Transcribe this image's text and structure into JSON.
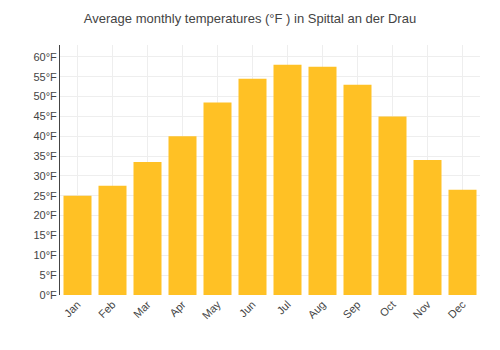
{
  "chart_data": {
    "type": "bar",
    "title": "Average monthly temperatures (°F ) in Spittal an der Drau",
    "categories": [
      "Jan",
      "Feb",
      "Mar",
      "Apr",
      "May",
      "Jun",
      "Jul",
      "Aug",
      "Sep",
      "Oct",
      "Nov",
      "Dec"
    ],
    "values": [
      25,
      27.5,
      33.5,
      40,
      48.5,
      54.5,
      58,
      57.5,
      53,
      45,
      34,
      26.5
    ],
    "color": "#FFC125",
    "ylim": [
      0,
      63
    ],
    "yticks": [
      {
        "value": 0,
        "label": "0°F"
      },
      {
        "value": 5,
        "label": "5°F"
      },
      {
        "value": 10,
        "label": "10°F"
      },
      {
        "value": 15,
        "label": "15°F"
      },
      {
        "value": 20,
        "label": "20°F"
      },
      {
        "value": 25,
        "label": "25°F"
      },
      {
        "value": 30,
        "label": "30°F"
      },
      {
        "value": 35,
        "label": "35°F"
      },
      {
        "value": 40,
        "label": "40°F"
      },
      {
        "value": 45,
        "label": "45°F"
      },
      {
        "value": 50,
        "label": "50°F"
      },
      {
        "value": 55,
        "label": "55°F"
      },
      {
        "value": 60,
        "label": "60°F"
      }
    ],
    "grid": true
  }
}
